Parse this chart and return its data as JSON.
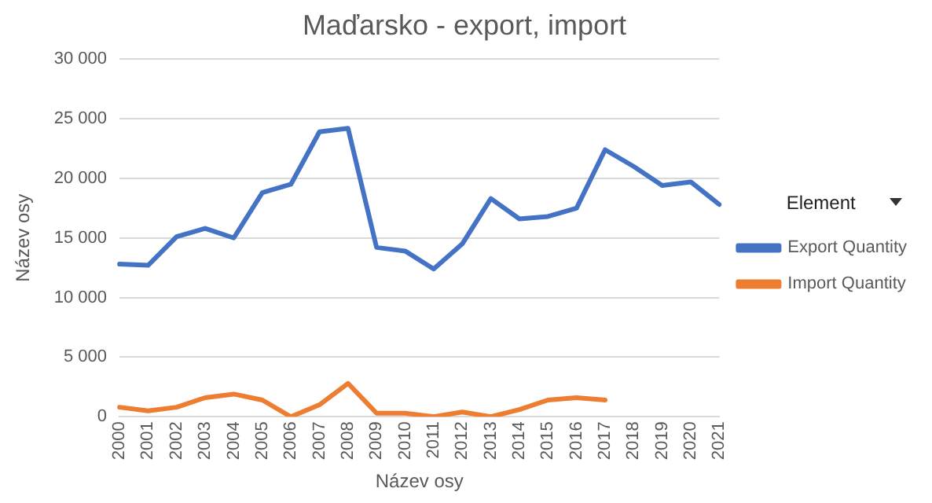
{
  "chart_data": {
    "type": "line",
    "title": "Maďarsko - export, import",
    "xlabel": "Název osy",
    "ylabel": "Název osy",
    "legend_title": "Element",
    "categories": [
      "2000",
      "2001",
      "2002",
      "2003",
      "2004",
      "2005",
      "2006",
      "2007",
      "2008",
      "2009",
      "2010",
      "2011",
      "2012",
      "2013",
      "2014",
      "2015",
      "2016",
      "2017",
      "2018",
      "2019",
      "2020",
      "2021"
    ],
    "series": [
      {
        "name": "Export Quantity",
        "color": "#4472c4",
        "values": [
          12800,
          12700,
          15100,
          15800,
          15000,
          18800,
          19500,
          23900,
          24200,
          14200,
          13900,
          12400,
          14500,
          18300,
          16600,
          16800,
          17500,
          22400,
          21000,
          19400,
          19700,
          17800
        ]
      },
      {
        "name": "Import Quantity",
        "color": "#ed7d31",
        "values": [
          800,
          500,
          800,
          1600,
          1900,
          1400,
          0,
          1000,
          2800,
          300,
          300,
          0,
          400,
          0,
          600,
          1400,
          1600,
          1400,
          null,
          null,
          null,
          null
        ]
      }
    ],
    "ylim": [
      0,
      30000
    ],
    "yticks": [
      {
        "value": 0,
        "label": "0"
      },
      {
        "value": 5000,
        "label": "5 000"
      },
      {
        "value": 10000,
        "label": "10 000"
      },
      {
        "value": 15000,
        "label": "15 000"
      },
      {
        "value": 20000,
        "label": "20 000"
      },
      {
        "value": 25000,
        "label": "25 000"
      },
      {
        "value": 30000,
        "label": "30 000"
      }
    ],
    "grid": "y",
    "legend": "right",
    "marker": "none",
    "line_style": "solid"
  }
}
